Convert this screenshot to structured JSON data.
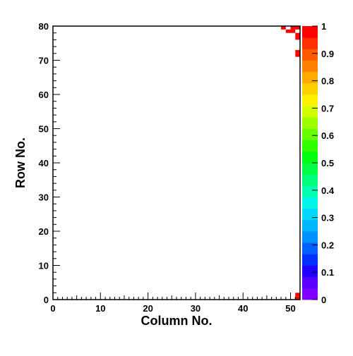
{
  "chart_data": {
    "type": "heatmap",
    "xlabel": "Column No.",
    "ylabel": "Row No.",
    "xlim": [
      0,
      52
    ],
    "ylim": [
      0,
      80
    ],
    "x_ticks": [
      0,
      10,
      20,
      30,
      40,
      50
    ],
    "y_ticks": [
      0,
      10,
      20,
      30,
      40,
      50,
      60,
      70,
      80
    ],
    "colorbar": {
      "range": [
        0,
        1
      ],
      "ticks": [
        0,
        0.1,
        0.2,
        0.3,
        0.4,
        0.5,
        0.6,
        0.7,
        0.8,
        0.9,
        1
      ],
      "tick_labels": [
        "0",
        "0.1",
        "0.2",
        "0.3",
        "0.4",
        "0.5",
        "0.6",
        "0.7",
        "0.8",
        "0.9",
        "1"
      ],
      "palette": [
        "#8000ff",
        "#5a00ff",
        "#2000ff",
        "#0030ff",
        "#0060ff",
        "#0090ff",
        "#00b6ff",
        "#00d6ff",
        "#00f6e8",
        "#00ffb0",
        "#00ff7a",
        "#00ff44",
        "#00ff10",
        "#30ff00",
        "#66ff00",
        "#9cff00",
        "#d2ff00",
        "#fff200",
        "#ffd000",
        "#ffaa00",
        "#ff8000",
        "#ff5a00",
        "#ff3000",
        "#ff0000"
      ]
    },
    "cells": [
      {
        "col": 48,
        "row": 79,
        "value": 1
      },
      {
        "col": 49,
        "row": 78,
        "value": 1
      },
      {
        "col": 50,
        "row": 79,
        "value": 1
      },
      {
        "col": 50,
        "row": 78,
        "value": 1
      },
      {
        "col": 51,
        "row": 79,
        "value": 1
      },
      {
        "col": 51,
        "row": 77,
        "value": 1
      },
      {
        "col": 51,
        "row": 76,
        "value": 1
      },
      {
        "col": 51,
        "row": 72,
        "value": 1
      },
      {
        "col": 51,
        "row": 71,
        "value": 1
      },
      {
        "col": 51,
        "row": 0,
        "value": 1
      },
      {
        "col": 51,
        "row": 1,
        "value": 1
      }
    ]
  }
}
